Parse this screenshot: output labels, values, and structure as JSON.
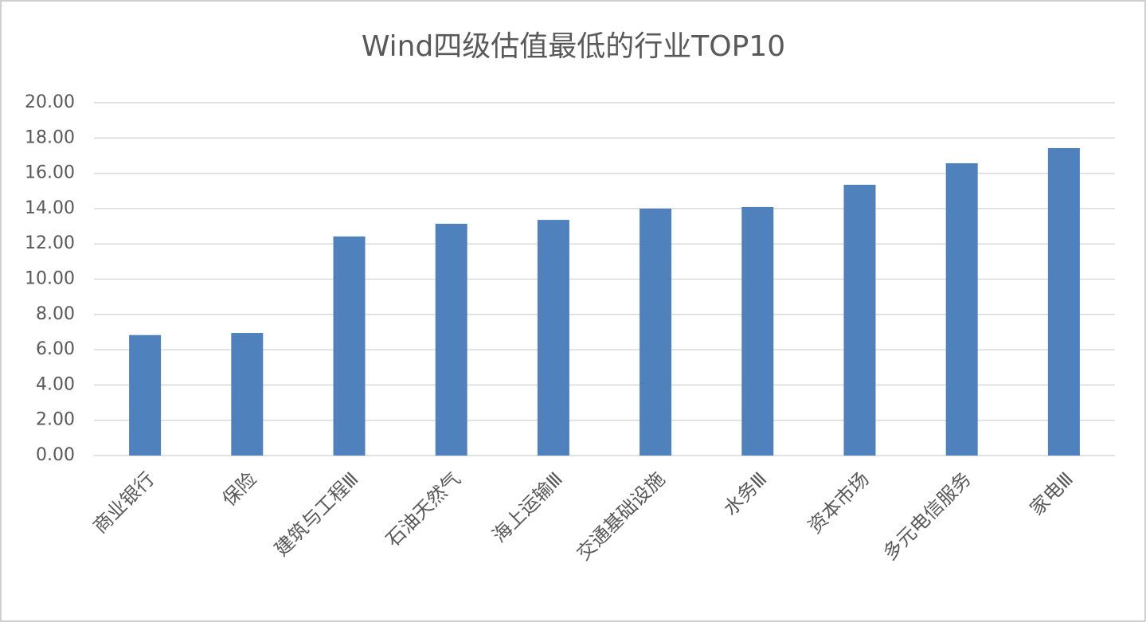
{
  "chart_data": {
    "type": "bar",
    "title": "Wind四级估值最低的行业TOP10",
    "categories": [
      "商业银行",
      "保险",
      "建筑与工程Ⅲ",
      "石油天然气",
      "海上运输Ⅲ",
      "交通基础设施",
      "水务Ⅲ",
      "资本市场",
      "多元电信服务",
      "家电Ⅲ"
    ],
    "values": [
      6.83,
      6.95,
      12.42,
      13.14,
      13.36,
      14.0,
      14.09,
      15.35,
      16.57,
      17.43
    ],
    "color": "#4f81bd",
    "ylim": [
      0,
      20
    ],
    "yticks": [
      {
        "value": 0,
        "label": "0.00"
      },
      {
        "value": 2,
        "label": "2.00"
      },
      {
        "value": 4,
        "label": "4.00"
      },
      {
        "value": 6,
        "label": "6.00"
      },
      {
        "value": 8,
        "label": "8.00"
      },
      {
        "value": 10,
        "label": "10.00"
      },
      {
        "value": 12,
        "label": "12.00"
      },
      {
        "value": 14,
        "label": "14.00"
      },
      {
        "value": 16,
        "label": "16.00"
      },
      {
        "value": 18,
        "label": "18.00"
      },
      {
        "value": 20,
        "label": "20.00"
      }
    ],
    "grid": true
  }
}
